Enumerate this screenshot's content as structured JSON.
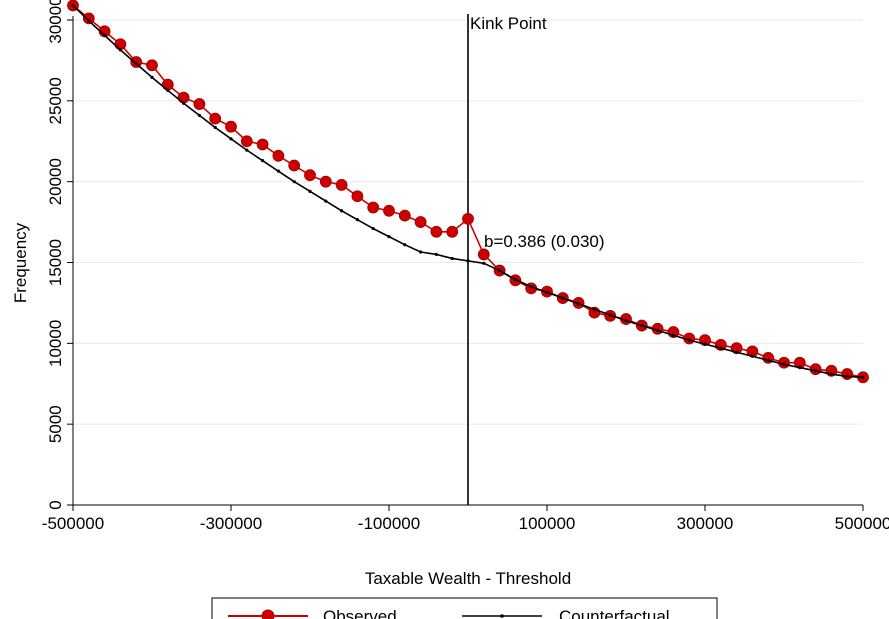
{
  "chart_data": {
    "type": "line",
    "title": "",
    "xlabel": "Taxable Wealth - Threshold",
    "ylabel": "Frequency",
    "xlim": [
      -500000,
      500000
    ],
    "ylim": [
      0,
      30000
    ],
    "xticks": [
      -500000,
      -300000,
      -100000,
      100000,
      300000,
      500000
    ],
    "xtick_labels": [
      "-500000",
      "-300000",
      "-100000",
      "100000",
      "300000",
      "500000"
    ],
    "yticks": [
      0,
      5000,
      10000,
      15000,
      20000,
      25000,
      30000
    ],
    "ytick_labels": [
      "0",
      "5000",
      "10000",
      "15000",
      "20000",
      "25000",
      "30000"
    ],
    "grid": "horizontal",
    "legend_position": "bottom",
    "x": [
      -500000,
      -480000,
      -460000,
      -440000,
      -420000,
      -400000,
      -380000,
      -360000,
      -340000,
      -320000,
      -300000,
      -280000,
      -260000,
      -240000,
      -220000,
      -200000,
      -180000,
      -160000,
      -140000,
      -120000,
      -100000,
      -80000,
      -60000,
      -40000,
      -20000,
      0,
      20000,
      40000,
      60000,
      80000,
      100000,
      120000,
      140000,
      160000,
      180000,
      200000,
      220000,
      240000,
      260000,
      280000,
      300000,
      320000,
      340000,
      360000,
      380000,
      400000,
      420000,
      440000,
      460000,
      480000,
      500000
    ],
    "series": [
      {
        "name": "Observed",
        "color": "#cc0000",
        "marker": "circle",
        "values": [
          30900,
          30100,
          29300,
          28500,
          27400,
          27200,
          26000,
          25200,
          24800,
          23900,
          23400,
          22500,
          22300,
          21600,
          21000,
          20400,
          20000,
          19800,
          19100,
          18400,
          18200,
          17900,
          17500,
          16900,
          16900,
          17700,
          15500,
          14500,
          13900,
          13400,
          13200,
          12800,
          12500,
          11900,
          11700,
          11500,
          11100,
          10900,
          10700,
          10300,
          10200,
          9900,
          9700,
          9500,
          9100,
          8800,
          8800,
          8400,
          8300,
          8100,
          7900
        ]
      },
      {
        "name": "Counterfactual",
        "color": "#000000",
        "marker": "dot",
        "values": [
          30900,
          29950,
          29050,
          28150,
          27300,
          26450,
          25650,
          24850,
          24100,
          23350,
          22650,
          21950,
          21300,
          20650,
          20000,
          19400,
          18800,
          18200,
          17650,
          17100,
          16600,
          16100,
          15650,
          15500,
          15250,
          15100,
          14950,
          14500,
          13950,
          13500,
          13150,
          12800,
          12450,
          12100,
          11750,
          11400,
          11100,
          10800,
          10500,
          10200,
          9950,
          9700,
          9450,
          9200,
          8950,
          8700,
          8500,
          8300,
          8100,
          7950,
          7900
        ]
      }
    ],
    "vline": {
      "x": 0,
      "label": "Kink Point"
    },
    "annotation": {
      "x": 20000,
      "y": 16300,
      "text": "b=0.386 (0.030)"
    },
    "legend": [
      "Observed",
      "Counterfactual"
    ]
  }
}
